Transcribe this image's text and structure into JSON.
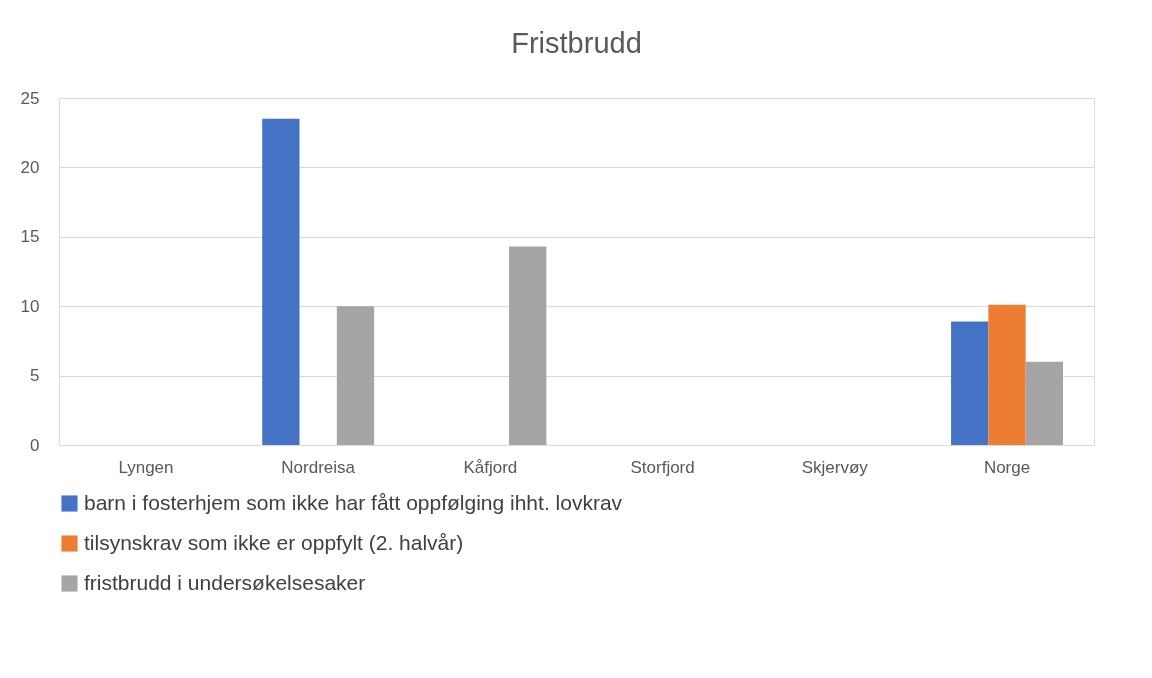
{
  "chart_data": {
    "type": "bar",
    "title": "Fristbrudd",
    "categories": [
      "Lyngen",
      "Nordreisa",
      "Kåfjord",
      "Storfjord",
      "Skjervøy",
      "Norge"
    ],
    "series": [
      {
        "name": "barn i fosterhjem som ikke har fått oppfølging ihht. lovkrav",
        "color": "#4472c4",
        "values": [
          0,
          23.5,
          0,
          0,
          0,
          8.9
        ]
      },
      {
        "name": "tilsynskrav som ikke er oppfylt (2. halvår)",
        "color": "#ed7d31",
        "values": [
          0,
          0,
          0,
          0,
          0,
          10.1
        ]
      },
      {
        "name": "fristbrudd i undersøkelsesaker",
        "color": "#a5a5a5",
        "values": [
          0,
          10,
          14.3,
          0,
          0,
          6
        ]
      }
    ],
    "ylim": [
      0,
      25
    ],
    "yticks": [
      0,
      5,
      10,
      15,
      20,
      25
    ],
    "grid": "y",
    "legend": "bottom"
  }
}
